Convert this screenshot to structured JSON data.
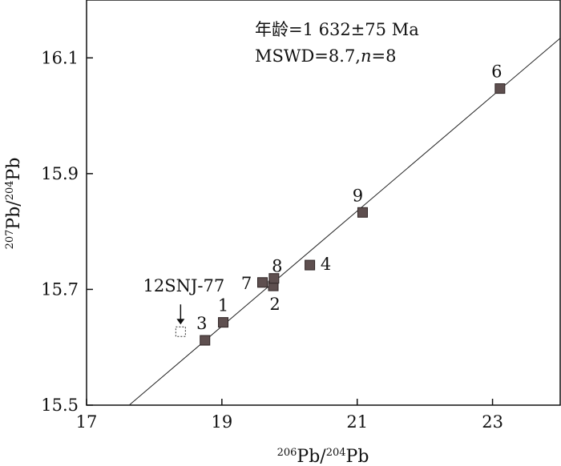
{
  "chart_data": {
    "type": "scatter",
    "xlim": [
      17,
      24
    ],
    "ylim": [
      15.5,
      16.2
    ],
    "x_ticks": [
      17,
      19,
      21,
      23
    ],
    "x_tick_labels": [
      "17",
      "19",
      "21",
      "23"
    ],
    "y_ticks": [
      15.5,
      15.7,
      15.9,
      16.1
    ],
    "y_tick_labels": [
      "15.5",
      "15.7",
      "15.9",
      "16.1"
    ],
    "xlabel": {
      "sup1": "206",
      "base1": "Pb/",
      "sup2": "204",
      "base2": "Pb"
    },
    "ylabel": {
      "sup1": "207",
      "base1": "Pb/",
      "sup2": "204",
      "base2": "Pb"
    },
    "annotation_line1": "年龄=1 632±75 Ma",
    "annotation_line2_prefix": "MSWD=8.7,",
    "annotation_line2_n": "n",
    "annotation_line2_suffix": "=8",
    "grid": false,
    "regression_line": {
      "x1": 17.63,
      "y1": 15.5,
      "x2": 24.0,
      "y2": 16.134
    },
    "points": [
      {
        "label": "1",
        "x": 19.02,
        "y": 15.643,
        "filled": true
      },
      {
        "label": "2",
        "x": 19.76,
        "y": 15.706,
        "filled": true
      },
      {
        "label": "3",
        "x": 18.75,
        "y": 15.612,
        "filled": true
      },
      {
        "label": "4",
        "x": 20.3,
        "y": 15.742,
        "filled": true
      },
      {
        "label": "6",
        "x": 23.11,
        "y": 16.047,
        "filled": true
      },
      {
        "label": "7",
        "x": 19.6,
        "y": 15.712,
        "filled": true
      },
      {
        "label": "8",
        "x": 19.77,
        "y": 15.719,
        "filled": true
      },
      {
        "label": "9",
        "x": 21.08,
        "y": 15.833,
        "filled": true
      },
      {
        "label": "12SNJ-77",
        "x": 18.39,
        "y": 15.627,
        "filled": false
      }
    ],
    "colors": {
      "marker_fill": "#5e4f4f",
      "marker_stroke": "#2e2424",
      "axis": "#111111",
      "line": "#222222"
    }
  }
}
